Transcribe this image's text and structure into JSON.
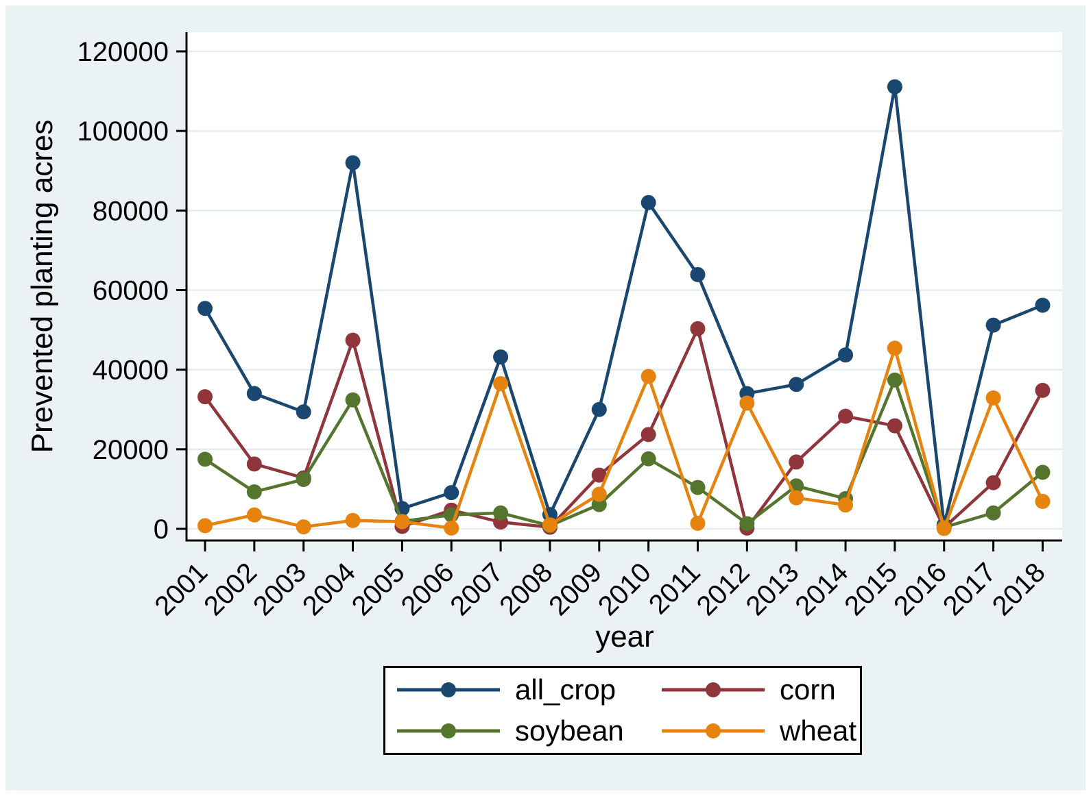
{
  "figure": {
    "outer_background": "#ffffff",
    "background_color": "#eaf2f3",
    "plot_background": "#ffffff",
    "grid_color": "#e2edf2",
    "axis_color": "#000000",
    "text_color": "#000000"
  },
  "chart_data": {
    "type": "line",
    "title": "",
    "xlabel": "year",
    "ylabel": "Prevented planting acres",
    "grid": true,
    "legend_position": "bottom",
    "ylim": [
      0,
      124000
    ],
    "y_ticks": [
      0,
      20000,
      40000,
      60000,
      80000,
      100000,
      120000
    ],
    "categories": [
      2001,
      2002,
      2003,
      2004,
      2005,
      2006,
      2007,
      2008,
      2009,
      2010,
      2011,
      2012,
      2013,
      2014,
      2015,
      2016,
      2017,
      2018
    ],
    "series": [
      {
        "name": "all_crop",
        "color": "#1a476f",
        "values": [
          55400,
          34000,
          29400,
          92000,
          5100,
          9100,
          43200,
          3600,
          30000,
          82000,
          63900,
          34000,
          36300,
          43700,
          111100,
          1000,
          51200,
          56200
        ]
      },
      {
        "name": "corn",
        "color": "#90353b",
        "values": [
          33200,
          16300,
          12800,
          47400,
          600,
          4700,
          1700,
          400,
          13500,
          23700,
          50300,
          200,
          16800,
          28300,
          25900,
          300,
          11600,
          34800
        ]
      },
      {
        "name": "soybean",
        "color": "#55752f",
        "values": [
          17500,
          9300,
          12400,
          32400,
          1900,
          3500,
          4000,
          800,
          6100,
          17600,
          10400,
          1300,
          10800,
          7600,
          37400,
          400,
          4000,
          14200
        ]
      },
      {
        "name": "wheat",
        "color": "#e6820e",
        "values": [
          800,
          3500,
          500,
          2100,
          1800,
          200,
          36500,
          1000,
          8700,
          38300,
          1400,
          31600,
          7800,
          6000,
          45400,
          100,
          32900,
          6900
        ]
      }
    ]
  }
}
